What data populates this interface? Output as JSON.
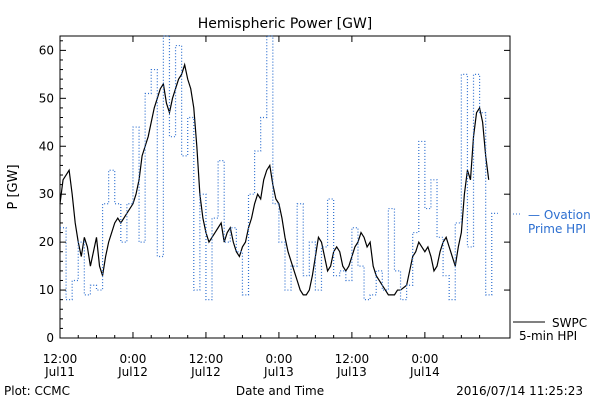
{
  "chart_data": {
    "type": "line",
    "title": "Hemispheric Power [GW]",
    "xlabel": "Date and Time",
    "ylabel": "P [GW]",
    "ylim": [
      0,
      63
    ],
    "xlim_hours": [
      0,
      74
    ],
    "y_ticks": [
      0,
      10,
      20,
      30,
      40,
      50,
      60
    ],
    "x_ticks": [
      {
        "h": 0,
        "top": "12:00",
        "bottom": "Jul11"
      },
      {
        "h": 12,
        "top": "0:00",
        "bottom": "Jul12"
      },
      {
        "h": 24,
        "top": "12:00",
        "bottom": "Jul12"
      },
      {
        "h": 36,
        "top": "0:00",
        "bottom": "Jul13"
      },
      {
        "h": 48,
        "top": "12:00",
        "bottom": "Jul13"
      },
      {
        "h": 60,
        "top": "0:00",
        "bottom": "Jul14"
      }
    ],
    "grid": false,
    "series": [
      {
        "name": "SWPC 5-min HPI",
        "style": "solid",
        "color": "#000000",
        "points": [
          [
            0,
            28
          ],
          [
            0.5,
            33
          ],
          [
            1,
            34
          ],
          [
            1.5,
            35
          ],
          [
            2,
            30
          ],
          [
            2.5,
            24
          ],
          [
            3,
            20
          ],
          [
            3.5,
            17
          ],
          [
            4,
            21
          ],
          [
            4.5,
            19
          ],
          [
            5,
            15
          ],
          [
            5.5,
            18
          ],
          [
            6,
            21
          ],
          [
            6.5,
            15
          ],
          [
            7,
            13
          ],
          [
            7.5,
            17
          ],
          [
            8,
            20
          ],
          [
            8.5,
            22
          ],
          [
            9,
            24
          ],
          [
            9.5,
            25
          ],
          [
            10,
            24
          ],
          [
            11,
            26
          ],
          [
            12,
            28
          ],
          [
            12.5,
            30
          ],
          [
            13,
            33
          ],
          [
            13.5,
            38
          ],
          [
            14,
            40
          ],
          [
            14.5,
            42
          ],
          [
            15,
            45
          ],
          [
            15.5,
            48
          ],
          [
            16,
            50
          ],
          [
            16.5,
            52
          ],
          [
            17,
            53
          ],
          [
            17.5,
            49
          ],
          [
            18,
            47
          ],
          [
            18.5,
            50
          ],
          [
            19,
            52
          ],
          [
            19.5,
            54
          ],
          [
            20,
            55
          ],
          [
            20.5,
            57
          ],
          [
            21,
            54
          ],
          [
            21.5,
            52
          ],
          [
            22,
            48
          ],
          [
            22.5,
            40
          ],
          [
            23,
            30
          ],
          [
            23.5,
            25
          ],
          [
            24,
            22
          ],
          [
            24.5,
            20
          ],
          [
            25,
            21
          ],
          [
            25.5,
            22
          ],
          [
            26,
            23
          ],
          [
            26.5,
            24
          ],
          [
            27,
            20
          ],
          [
            27.5,
            22
          ],
          [
            28,
            23
          ],
          [
            28.5,
            20
          ],
          [
            29,
            18
          ],
          [
            29.5,
            17
          ],
          [
            30,
            19
          ],
          [
            30.5,
            20
          ],
          [
            31,
            23
          ],
          [
            31.5,
            25
          ],
          [
            32,
            28
          ],
          [
            32.5,
            30
          ],
          [
            33,
            29
          ],
          [
            33.5,
            33
          ],
          [
            34,
            35
          ],
          [
            34.5,
            36
          ],
          [
            35,
            32
          ],
          [
            35.5,
            29
          ],
          [
            36,
            28
          ],
          [
            36.5,
            25
          ],
          [
            37,
            21
          ],
          [
            37.5,
            18
          ],
          [
            38,
            16
          ],
          [
            38.5,
            14
          ],
          [
            39,
            12
          ],
          [
            39.5,
            10
          ],
          [
            40,
            9
          ],
          [
            40.5,
            9
          ],
          [
            41,
            10
          ],
          [
            41.5,
            13
          ],
          [
            42,
            17
          ],
          [
            42.5,
            21
          ],
          [
            43,
            20
          ],
          [
            43.5,
            17
          ],
          [
            44,
            14
          ],
          [
            44.5,
            15
          ],
          [
            45,
            18
          ],
          [
            45.5,
            19
          ],
          [
            46,
            18
          ],
          [
            46.5,
            15
          ],
          [
            47,
            14
          ],
          [
            47.5,
            15
          ],
          [
            48,
            17
          ],
          [
            48.5,
            19
          ],
          [
            49,
            20
          ],
          [
            49.5,
            22
          ],
          [
            50,
            21
          ],
          [
            50.5,
            19
          ],
          [
            51,
            20
          ],
          [
            51.5,
            15
          ],
          [
            52,
            13
          ],
          [
            52.5,
            12
          ],
          [
            53,
            11
          ],
          [
            53.5,
            10
          ],
          [
            54,
            9
          ],
          [
            54.5,
            9
          ],
          [
            55,
            9
          ],
          [
            55.5,
            10
          ],
          [
            56,
            10
          ],
          [
            57,
            11
          ],
          [
            57.5,
            14
          ],
          [
            58,
            17
          ],
          [
            58.5,
            18
          ],
          [
            59,
            20
          ],
          [
            59.5,
            19
          ],
          [
            60,
            18
          ],
          [
            60.5,
            19
          ],
          [
            61,
            17
          ],
          [
            61.5,
            14
          ],
          [
            62,
            15
          ],
          [
            62.5,
            18
          ],
          [
            63,
            20
          ],
          [
            63.5,
            21
          ],
          [
            64,
            19
          ],
          [
            64.5,
            17
          ],
          [
            65,
            15
          ],
          [
            65.5,
            19
          ],
          [
            66,
            22
          ],
          [
            66.5,
            30
          ],
          [
            67,
            35
          ],
          [
            67.5,
            33
          ],
          [
            68,
            42
          ],
          [
            68.5,
            47
          ],
          [
            69,
            48
          ],
          [
            69.5,
            45
          ],
          [
            70,
            38
          ],
          [
            70.5,
            33
          ]
        ]
      },
      {
        "name": "Ovation Prime HPI",
        "style": "dotted-step",
        "color": "#2d6fd0",
        "points": [
          [
            0,
            23
          ],
          [
            1,
            8
          ],
          [
            2,
            12
          ],
          [
            3,
            20
          ],
          [
            4,
            9
          ],
          [
            5,
            11
          ],
          [
            6,
            10
          ],
          [
            7,
            28
          ],
          [
            8,
            35
          ],
          [
            9,
            28
          ],
          [
            10,
            20
          ],
          [
            11,
            28
          ],
          [
            12,
            44
          ],
          [
            13,
            20
          ],
          [
            14,
            51
          ],
          [
            15,
            56
          ],
          [
            16,
            17
          ],
          [
            17,
            63
          ],
          [
            18,
            42
          ],
          [
            19,
            61
          ],
          [
            20,
            38
          ],
          [
            21,
            46
          ],
          [
            22,
            10
          ],
          [
            23,
            30
          ],
          [
            24,
            8
          ],
          [
            25,
            25
          ],
          [
            26,
            37
          ],
          [
            27,
            20
          ],
          [
            28,
            23
          ],
          [
            29,
            18
          ],
          [
            30,
            9
          ],
          [
            31,
            30
          ],
          [
            32,
            39
          ],
          [
            33,
            46
          ],
          [
            34,
            63
          ],
          [
            35,
            28
          ],
          [
            36,
            20
          ],
          [
            37,
            10
          ],
          [
            38,
            15
          ],
          [
            39,
            28
          ],
          [
            40,
            13
          ],
          [
            41,
            20
          ],
          [
            42,
            10
          ],
          [
            43,
            19
          ],
          [
            44,
            29
          ],
          [
            45,
            13
          ],
          [
            46,
            14
          ],
          [
            47,
            12
          ],
          [
            48,
            23
          ],
          [
            49,
            15
          ],
          [
            50,
            8
          ],
          [
            51,
            9
          ],
          [
            52,
            14
          ],
          [
            53,
            10
          ],
          [
            54,
            27
          ],
          [
            55,
            14
          ],
          [
            56,
            8
          ],
          [
            57,
            11
          ],
          [
            58,
            22
          ],
          [
            59,
            41
          ],
          [
            60,
            27
          ],
          [
            61,
            33
          ],
          [
            62,
            21
          ],
          [
            63,
            13
          ],
          [
            64,
            8
          ],
          [
            65,
            24
          ],
          [
            66,
            55
          ],
          [
            67,
            19
          ],
          [
            68,
            55
          ],
          [
            69,
            47
          ],
          [
            70,
            9
          ],
          [
            71,
            26
          ]
        ]
      }
    ],
    "legend": [
      {
        "label_line1": "— Ovation",
        "label_line2": "Prime HPI",
        "color": "#2d6fd0"
      },
      {
        "label_line1": "SWPC",
        "label_line2": "5-min HPI",
        "color": "#000000"
      }
    ]
  },
  "footer": {
    "plot_credit": "Plot: CCMC",
    "timestamp": "2016/07/14 11:25:23"
  }
}
